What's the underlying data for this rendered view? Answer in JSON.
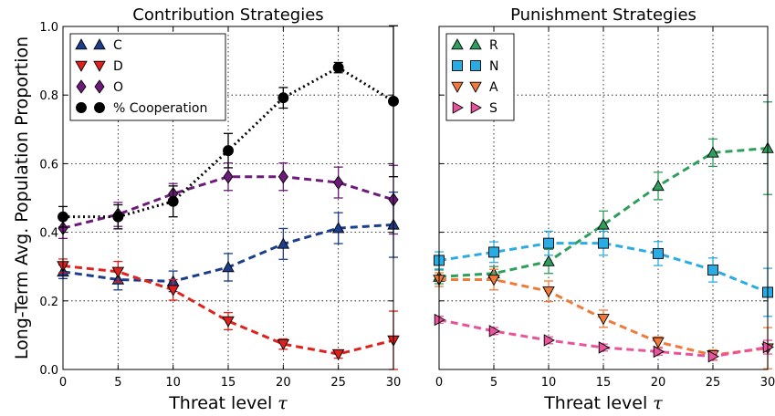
{
  "chart_data": [
    {
      "type": "line",
      "title": "Contribution Strategies",
      "xlabel": "Threat level τ",
      "ylabel": "Long-Term Avg. Population Proportion",
      "x": [
        0,
        5,
        10,
        15,
        20,
        25,
        30
      ],
      "xticks": [
        "0",
        "5",
        "10",
        "15",
        "20",
        "25",
        "30"
      ],
      "yticks": [
        "0.0",
        "0.2",
        "0.4",
        "0.6",
        "0.8",
        "1.0"
      ],
      "xlim": [
        0,
        30
      ],
      "ylim": [
        0,
        1
      ],
      "grid": true,
      "legend_position": "top-left",
      "series": [
        {
          "name": "C",
          "marker": "triangle-up",
          "linestyle": "dashed",
          "color": "#1a3e8c",
          "values": [
            0.285,
            0.262,
            0.257,
            0.298,
            0.366,
            0.412,
            0.422
          ],
          "errors": [
            0.02,
            0.03,
            0.03,
            0.04,
            0.045,
            0.045,
            0.095
          ]
        },
        {
          "name": "D",
          "marker": "triangle-down",
          "linestyle": "dashed",
          "color": "#e0201c",
          "values": [
            0.302,
            0.285,
            0.232,
            0.141,
            0.074,
            0.045,
            0.085
          ],
          "errors": [
            0.02,
            0.03,
            0.03,
            0.025,
            0.015,
            0.012,
            0.085
          ]
        },
        {
          "name": "O",
          "marker": "diamond",
          "linestyle": "dashed",
          "color": "#6e1a7a",
          "values": [
            0.412,
            0.452,
            0.512,
            0.562,
            0.562,
            0.545,
            0.495
          ],
          "errors": [
            0.03,
            0.035,
            0.03,
            0.04,
            0.04,
            0.045,
            0.1
          ]
        },
        {
          "name": "% Cooperation",
          "marker": "circle",
          "linestyle": "dotted",
          "color": "#000000",
          "values": [
            0.445,
            0.445,
            0.49,
            0.638,
            0.792,
            0.88,
            0.782
          ],
          "errors": [
            0.03,
            0.035,
            0.045,
            0.05,
            0.03,
            0.015,
            0.22
          ]
        }
      ]
    },
    {
      "type": "line",
      "title": "Punishment Strategies",
      "xlabel": "Threat level τ",
      "x": [
        0,
        5,
        10,
        15,
        20,
        25,
        30
      ],
      "xticks": [
        "0",
        "5",
        "10",
        "15",
        "20",
        "25",
        "30"
      ],
      "xlim": [
        0,
        30
      ],
      "ylim": [
        0,
        1
      ],
      "grid": true,
      "legend_position": "top-left",
      "series": [
        {
          "name": "R",
          "marker": "triangle-up",
          "linestyle": "dashed",
          "color": "#2e9e5c",
          "values": [
            0.27,
            0.28,
            0.315,
            0.422,
            0.535,
            0.632,
            0.645
          ],
          "errors": [
            0.02,
            0.02,
            0.035,
            0.04,
            0.04,
            0.04,
            0.135
          ]
        },
        {
          "name": "N",
          "marker": "square",
          "linestyle": "dashed",
          "color": "#2aace2",
          "values": [
            0.318,
            0.342,
            0.368,
            0.368,
            0.338,
            0.29,
            0.225
          ],
          "errors": [
            0.025,
            0.03,
            0.035,
            0.035,
            0.035,
            0.035,
            0.07
          ]
        },
        {
          "name": "A",
          "marker": "triangle-down",
          "linestyle": "dashed",
          "color": "#f07a3a",
          "values": [
            0.262,
            0.262,
            0.228,
            0.148,
            0.08,
            0.042,
            0.062
          ],
          "errors": [
            0.02,
            0.03,
            0.03,
            0.025,
            0.015,
            0.015,
            0.06
          ]
        },
        {
          "name": "S",
          "marker": "triangle-right",
          "linestyle": "dashed",
          "color": "#e8539b",
          "values": [
            0.145,
            0.112,
            0.085,
            0.064,
            0.052,
            0.038,
            0.065
          ],
          "errors": [
            0.01,
            0.01,
            0.01,
            0.01,
            0.01,
            0.01,
            0.02
          ]
        }
      ]
    }
  ]
}
